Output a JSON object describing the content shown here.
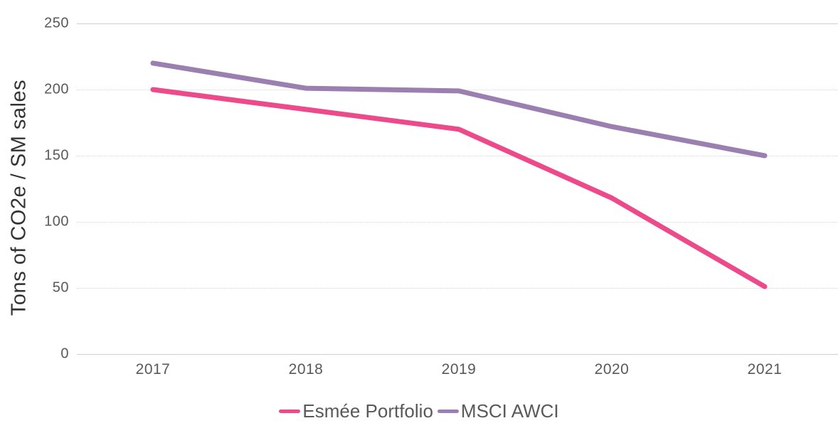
{
  "chart_data": {
    "type": "line",
    "title": "",
    "xlabel": "",
    "ylabel": "Tons of CO2e / SM sales",
    "categories": [
      "2017",
      "2018",
      "2019",
      "2020",
      "2021"
    ],
    "series": [
      {
        "name": "Esmée Portfolio",
        "color": "#EC4A8B",
        "values": [
          200,
          185,
          170,
          118,
          51
        ]
      },
      {
        "name": "MSCI AWCI",
        "color": "#9B7FB0",
        "values": [
          220,
          201,
          199,
          172,
          150
        ]
      }
    ],
    "ylim": [
      0,
      250
    ],
    "yticks": [
      250,
      200,
      150,
      100,
      50,
      0
    ],
    "grid": true,
    "legend_position": "bottom"
  }
}
